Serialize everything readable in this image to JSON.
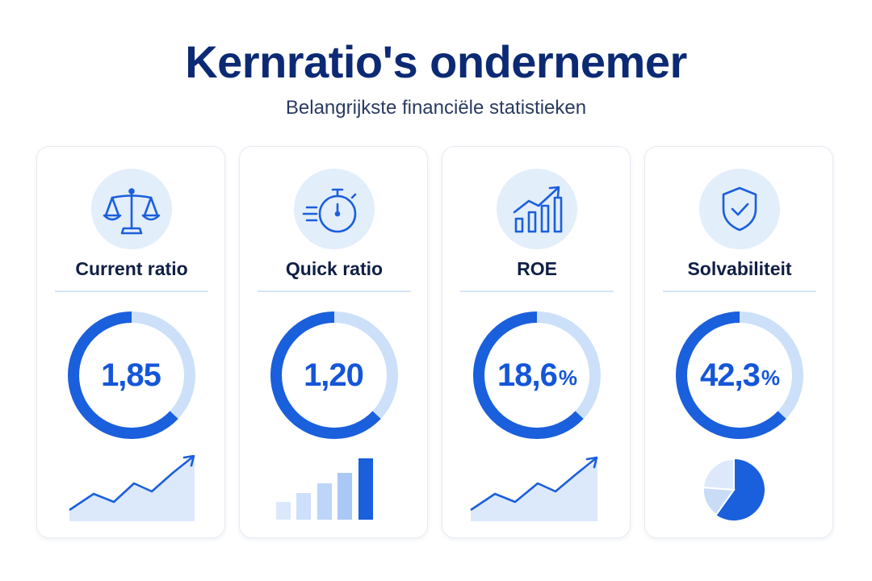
{
  "header": {
    "title": "Kernratio's ondernemer",
    "subtitle": "Belangrijkste financiële statistieken"
  },
  "colors": {
    "primary": "#1a5fdc",
    "light": "#cde0f9",
    "icon_bg": "#e3eefb",
    "title": "#0c2a74"
  },
  "cards": [
    {
      "icon": "scale-icon",
      "title": "Current ratio",
      "value": "1,85",
      "unit": "",
      "gauge_fraction": 0.63,
      "mini_chart": "line-trend"
    },
    {
      "icon": "stopwatch-icon",
      "title": "Quick ratio",
      "value": "1,20",
      "unit": "",
      "gauge_fraction": 0.63,
      "mini_chart": "bars-rising"
    },
    {
      "icon": "growth-chart-icon",
      "title": "ROE",
      "value": "18,6",
      "unit": "%",
      "gauge_fraction": 0.63,
      "mini_chart": "line-trend"
    },
    {
      "icon": "shield-check-icon",
      "title": "Solvabiliteit",
      "value": "42,3",
      "unit": "%",
      "gauge_fraction": 0.63,
      "mini_chart": "pie"
    }
  ]
}
